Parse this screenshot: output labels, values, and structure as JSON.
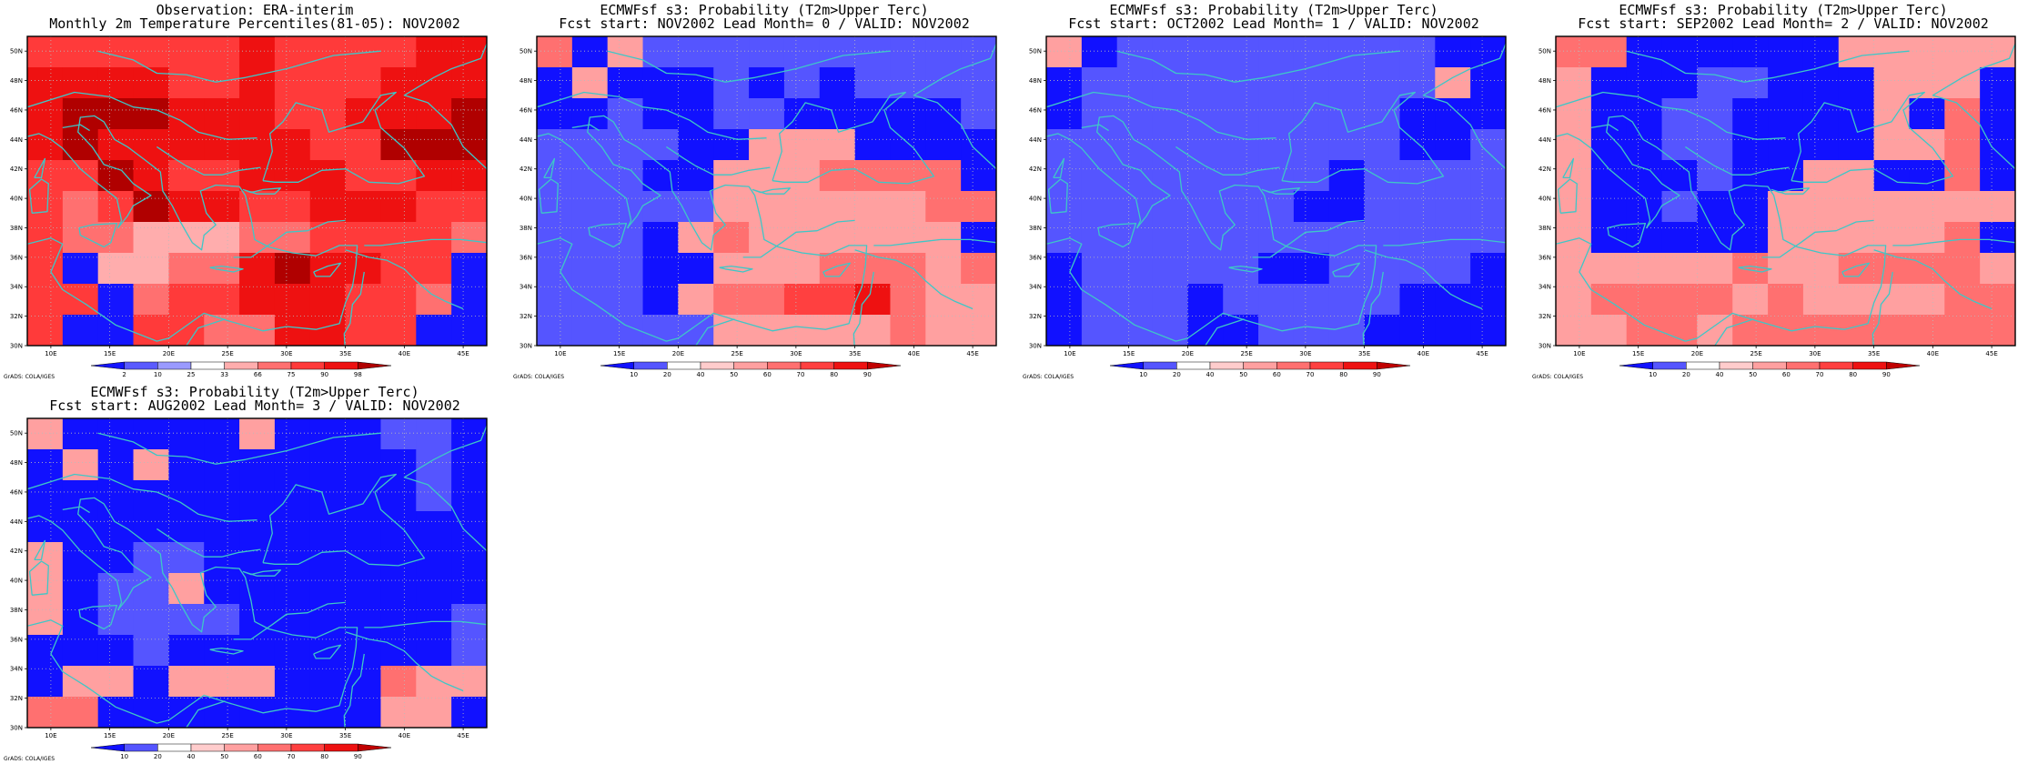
{
  "footer_credit": "GrADS: COLA/IGES",
  "grid": {
    "lon_start": 8,
    "lon_end": 47,
    "lat_start": 30,
    "lat_end": 51,
    "cell_deg": 2.5
  },
  "axis_labels": {
    "x": [
      "10E",
      "15E",
      "20E",
      "25E",
      "30E",
      "35E",
      "40E",
      "45E"
    ],
    "y": [
      "30N",
      "32N",
      "34N",
      "36N",
      "38N",
      "40N",
      "42N",
      "44N",
      "46N",
      "48N",
      "50N"
    ]
  },
  "colors": {
    "map_frame": "#000000",
    "coastline": "#3ec7c7",
    "grid_dots": "#bbbbbb"
  },
  "panels": [
    {
      "id": "obs",
      "title_line1": "Observation: ERA-interim",
      "title_line2": "Monthly 2m Temperature Percentiles(81-05): NOV2002",
      "colorbar": {
        "labels": [
          "2",
          "10",
          "25",
          "33",
          "66",
          "75",
          "90",
          "98"
        ],
        "colors": [
          "#1515ff",
          "#5a5aff",
          "#9a9aff",
          "#ffffff",
          "#ffadad",
          "#ff7070",
          "#ff3a3a",
          "#ee1111",
          "#b00000"
        ]
      },
      "field_rows": [
        "6666667666677",
        "7777667666777",
        "7888777667778",
        "7877777766888",
        "6687667776677",
        "6568776677766",
        "6554445566665",
        "6044557877660",
        "6605667776650",
        "6006655776600"
      ]
    },
    {
      "id": "lead0",
      "title_line1": "ECMWFsf s3: Probability (T2m>Upper Terc)",
      "title_line2": "Fcst start: NOV2002  Lead Month= 0 / VALID: NOV2002",
      "colorbar": {
        "labels": [
          "10",
          "20",
          "40",
          "50",
          "60",
          "70",
          "80",
          "90"
        ],
        "colors": [
          "#1111ff",
          "#5555ff",
          "#ffffff",
          "#ffcccc",
          "#ffa0a0",
          "#ff7070",
          "#ff4040",
          "#ee1111",
          "#c00000"
        ]
      },
      "field_rows": [
        "5041111111111",
        "0400010101111",
        "0010011000001",
        "1111004440000",
        "1110044455550",
        "1111144444455",
        "1110454444440",
        "1110044455545",
        "1110455667544",
        "1111144444544"
      ]
    },
    {
      "id": "lead1",
      "title_line1": "ECMWFsf s3: Probability (T2m>Upper Terc)",
      "title_line2": "Fcst start: OCT2002  Lead Month= 1 / VALID: NOV2002",
      "colorbar": {
        "labels": [
          "10",
          "20",
          "40",
          "50",
          "60",
          "70",
          "80",
          "90"
        ],
        "colors": [
          "#1111ff",
          "#5555ff",
          "#ffffff",
          "#ffcccc",
          "#ffa0a0",
          "#ff7070",
          "#ff4040",
          "#ee1111",
          "#c00000"
        ]
      },
      "field_rows": [
        "4011111111100",
        "0111111111140",
        "0111111111000",
        "1111111111001",
        "1111111101111",
        "1111111001111",
        "1111111111111",
        "0111110011110",
        "0111011111000",
        "0111001110000"
      ]
    },
    {
      "id": "lead2",
      "title_line1": "ECMWFsf s3: Probability (T2m>Upper Terc)",
      "title_line2": "Fcst start: SEP2002  Lead Month= 2 / VALID: NOV2002",
      "colorbar": {
        "labels": [
          "10",
          "20",
          "40",
          "50",
          "60",
          "70",
          "80",
          "90"
        ],
        "colors": [
          "#1111ff",
          "#5555ff",
          "#ffffff",
          "#ffcccc",
          "#ffa0a0",
          "#ff7070",
          "#ff4040",
          "#ee1111",
          "#c00000"
        ]
      },
      "field_rows": [
        "5500000044444",
        "4000110004440",
        "4001100004050",
        "4001100004450",
        "4000100440050",
        "4001004444444",
        "4000004444450",
        "4444454455554",
        "4555545444455",
        "4455455555555"
      ]
    },
    {
      "id": "lead3",
      "title_line1": "ECMWFsf s3: Probability (T2m>Upper Terc)",
      "title_line2": "Fcst start: AUG2002  Lead Month= 3 / VALID: NOV2002",
      "colorbar": {
        "labels": [
          "10",
          "20",
          "40",
          "50",
          "60",
          "70",
          "80",
          "90"
        ],
        "colors": [
          "#1111ff",
          "#5555ff",
          "#ffffff",
          "#ffcccc",
          "#ffa0a0",
          "#ff7070",
          "#ff4040",
          "#ee1111",
          "#c00000"
        ]
      },
      "field_rows": [
        "4000004000110",
        "0404000000010",
        "0000000000010",
        "0000000000000",
        "4001100000000",
        "4011400000000",
        "4011110000001",
        "0001000000001",
        "0440444000544",
        "5500000000440"
      ]
    }
  ]
}
